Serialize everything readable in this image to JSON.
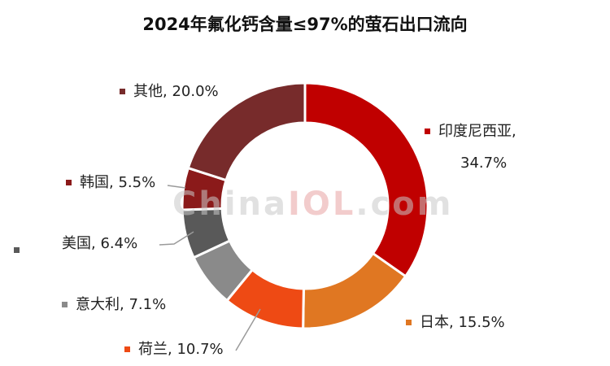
{
  "title": "2024年氟化钙含量≤97%的萤石出口流向",
  "watermark": {
    "part1": "China",
    "part2": "IOL",
    "part3": ".com"
  },
  "colors": {
    "印度尼西亚": "#c00000",
    "日本": "#e07722",
    "荷兰": "#ee4a14",
    "意大利": "#8a8a8a",
    "美国": "#595959",
    "韩国": "#8b1a1a",
    "其他": "#772b2b"
  },
  "chart_data": {
    "type": "pie",
    "donut": true,
    "title": "2024年氟化钙含量≤97%的萤石出口流向",
    "unit": "%",
    "slices": [
      {
        "name": "印度尼西亚",
        "value": 34.7,
        "label": "印度尼西亚,",
        "value_label": "34.7%"
      },
      {
        "name": "日本",
        "value": 15.5,
        "label": "日本, 15.5%"
      },
      {
        "name": "荷兰",
        "value": 10.7,
        "label": "荷兰, 10.7%"
      },
      {
        "name": "意大利",
        "value": 7.1,
        "label": "意大利, 7.1%"
      },
      {
        "name": "美国",
        "value": 6.4,
        "label": "美国, 6.4%"
      },
      {
        "name": "韩国",
        "value": 5.5,
        "label": "韩国, 5.5%"
      },
      {
        "name": "其他",
        "value": 20.0,
        "label": "其他, 20.0%"
      }
    ]
  }
}
